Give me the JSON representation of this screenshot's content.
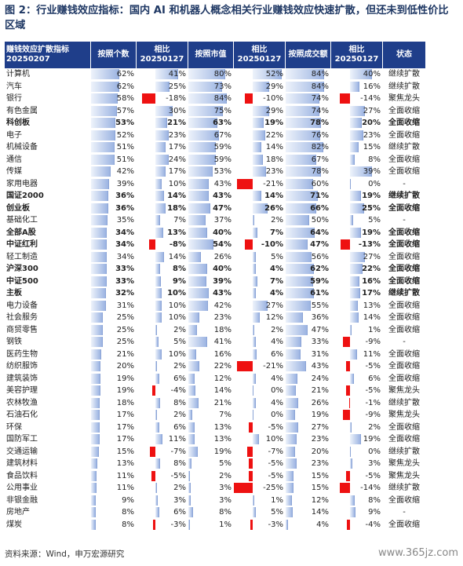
{
  "title": "图 2：行业赚钱效应指标：国内 AI 和机器人概念相关行业赚钱效应快速扩散，但还未到低性价比区域",
  "footer": {
    "source": "资料来源：Wind，申万宏源研究",
    "watermark": "www.365jz.com"
  },
  "colors": {
    "header_bg": "#1f3e8a",
    "positive_bar": "#9cb4e2",
    "negative_bar": "#ee1111"
  },
  "chart_data": {
    "type": "table",
    "columns": [
      "赚钱效应扩散指标\n20250207",
      "按照个数",
      "相比\n20250127",
      "按照市值",
      "相比\n20250127",
      "按照成交额",
      "相比\n20250127",
      "状态"
    ],
    "rows": [
      {
        "name": "计算机",
        "b": false,
        "v": [
          62,
          41,
          80,
          52,
          84,
          40
        ],
        "s": "继续扩散"
      },
      {
        "name": "汽车",
        "b": false,
        "v": [
          62,
          25,
          73,
          29,
          84,
          16
        ],
        "s": "继续扩散"
      },
      {
        "name": "银行",
        "b": false,
        "v": [
          58,
          -18,
          84,
          -10,
          74,
          -14
        ],
        "s": "聚焦龙头"
      },
      {
        "name": "有色金属",
        "b": false,
        "v": [
          57,
          30,
          75,
          29,
          74,
          27
        ],
        "s": "全面收缩"
      },
      {
        "name": "科创板",
        "b": true,
        "v": [
          53,
          21,
          63,
          19,
          78,
          20
        ],
        "s": "全面收缩"
      },
      {
        "name": "电子",
        "b": false,
        "v": [
          52,
          23,
          67,
          22,
          76,
          23
        ],
        "s": "全面收缩"
      },
      {
        "name": "机械设备",
        "b": false,
        "v": [
          51,
          17,
          59,
          14,
          82,
          15
        ],
        "s": "继续扩散"
      },
      {
        "name": "通信",
        "b": false,
        "v": [
          51,
          24,
          59,
          18,
          67,
          8
        ],
        "s": "全面收缩"
      },
      {
        "name": "传媒",
        "b": false,
        "v": [
          42,
          17,
          53,
          23,
          78,
          39
        ],
        "s": "全面收缩"
      },
      {
        "name": "家用电器",
        "b": false,
        "v": [
          39,
          10,
          43,
          -21,
          60,
          0
        ],
        "s": "-"
      },
      {
        "name": "国证2000",
        "b": true,
        "v": [
          36,
          14,
          43,
          14,
          71,
          19
        ],
        "s": "继续扩散"
      },
      {
        "name": "创业板",
        "b": true,
        "v": [
          36,
          18,
          47,
          26,
          66,
          25
        ],
        "s": "全面收缩"
      },
      {
        "name": "基础化工",
        "b": false,
        "v": [
          35,
          7,
          37,
          2,
          50,
          5
        ],
        "s": "-"
      },
      {
        "name": "全部A股",
        "b": true,
        "v": [
          34,
          13,
          40,
          7,
          64,
          19
        ],
        "s": "全面收缩"
      },
      {
        "name": "中证红利",
        "b": true,
        "v": [
          34,
          -8,
          54,
          -10,
          47,
          -13
        ],
        "s": "全面收缩"
      },
      {
        "name": "轻工制造",
        "b": false,
        "v": [
          34,
          14,
          26,
          5,
          56,
          27
        ],
        "s": "全面收缩"
      },
      {
        "name": "沪深300",
        "b": true,
        "v": [
          33,
          8,
          40,
          4,
          62,
          22
        ],
        "s": "全面收缩"
      },
      {
        "name": "中证500",
        "b": true,
        "v": [
          33,
          9,
          39,
          7,
          59,
          16
        ],
        "s": "全面收缩"
      },
      {
        "name": "主板",
        "b": true,
        "v": [
          32,
          10,
          43,
          4,
          61,
          17
        ],
        "s": "继续扩散"
      },
      {
        "name": "电力设备",
        "b": false,
        "v": [
          31,
          10,
          42,
          27,
          55,
          13
        ],
        "s": "全面收缩"
      },
      {
        "name": "社会服务",
        "b": false,
        "v": [
          25,
          10,
          23,
          12,
          36,
          14
        ],
        "s": "全面收缩"
      },
      {
        "name": "商贸零售",
        "b": false,
        "v": [
          25,
          2,
          18,
          2,
          47,
          1
        ],
        "s": "全面收缩"
      },
      {
        "name": "钢铁",
        "b": false,
        "v": [
          25,
          5,
          41,
          4,
          33,
          -9
        ],
        "s": "-"
      },
      {
        "name": "医药生物",
        "b": false,
        "v": [
          21,
          10,
          16,
          6,
          31,
          11
        ],
        "s": "全面收缩"
      },
      {
        "name": "纺织服饰",
        "b": false,
        "v": [
          20,
          2,
          22,
          -21,
          43,
          -5
        ],
        "s": "全面收缩"
      },
      {
        "name": "建筑装饰",
        "b": false,
        "v": [
          19,
          6,
          12,
          4,
          24,
          6
        ],
        "s": "全面收缩"
      },
      {
        "name": "美容护理",
        "b": false,
        "v": [
          19,
          -4,
          14,
          0,
          21,
          -5
        ],
        "s": "聚焦龙头"
      },
      {
        "name": "农林牧渔",
        "b": false,
        "v": [
          18,
          8,
          21,
          4,
          26,
          -1
        ],
        "s": "继续扩散"
      },
      {
        "name": "石油石化",
        "b": false,
        "v": [
          17,
          2,
          7,
          0,
          19,
          -9
        ],
        "s": "聚焦龙头"
      },
      {
        "name": "环保",
        "b": false,
        "v": [
          17,
          6,
          13,
          -5,
          27,
          2
        ],
        "s": "全面收缩"
      },
      {
        "name": "国防军工",
        "b": false,
        "v": [
          17,
          11,
          13,
          10,
          23,
          19
        ],
        "s": "全面收缩"
      },
      {
        "name": "交通运输",
        "b": false,
        "v": [
          15,
          -7,
          19,
          -7,
          20,
          0
        ],
        "s": "继续扩散"
      },
      {
        "name": "建筑材料",
        "b": false,
        "v": [
          13,
          8,
          5,
          -5,
          23,
          3
        ],
        "s": "聚焦龙头"
      },
      {
        "name": "食品饮料",
        "b": false,
        "v": [
          11,
          -5,
          2,
          -5,
          15,
          -5
        ],
        "s": "聚焦龙头"
      },
      {
        "name": "公用事业",
        "b": false,
        "v": [
          11,
          2,
          3,
          -25,
          15,
          -14
        ],
        "s": "继续扩散"
      },
      {
        "name": "非银金融",
        "b": false,
        "v": [
          9,
          3,
          3,
          1,
          12,
          8
        ],
        "s": "全面收缩"
      },
      {
        "name": "房地产",
        "b": false,
        "v": [
          8,
          6,
          8,
          5,
          14,
          9
        ],
        "s": "-"
      },
      {
        "name": "煤炭",
        "b": false,
        "v": [
          8,
          -3,
          1,
          -3,
          4,
          -4
        ],
        "s": "全面收缩"
      }
    ]
  }
}
